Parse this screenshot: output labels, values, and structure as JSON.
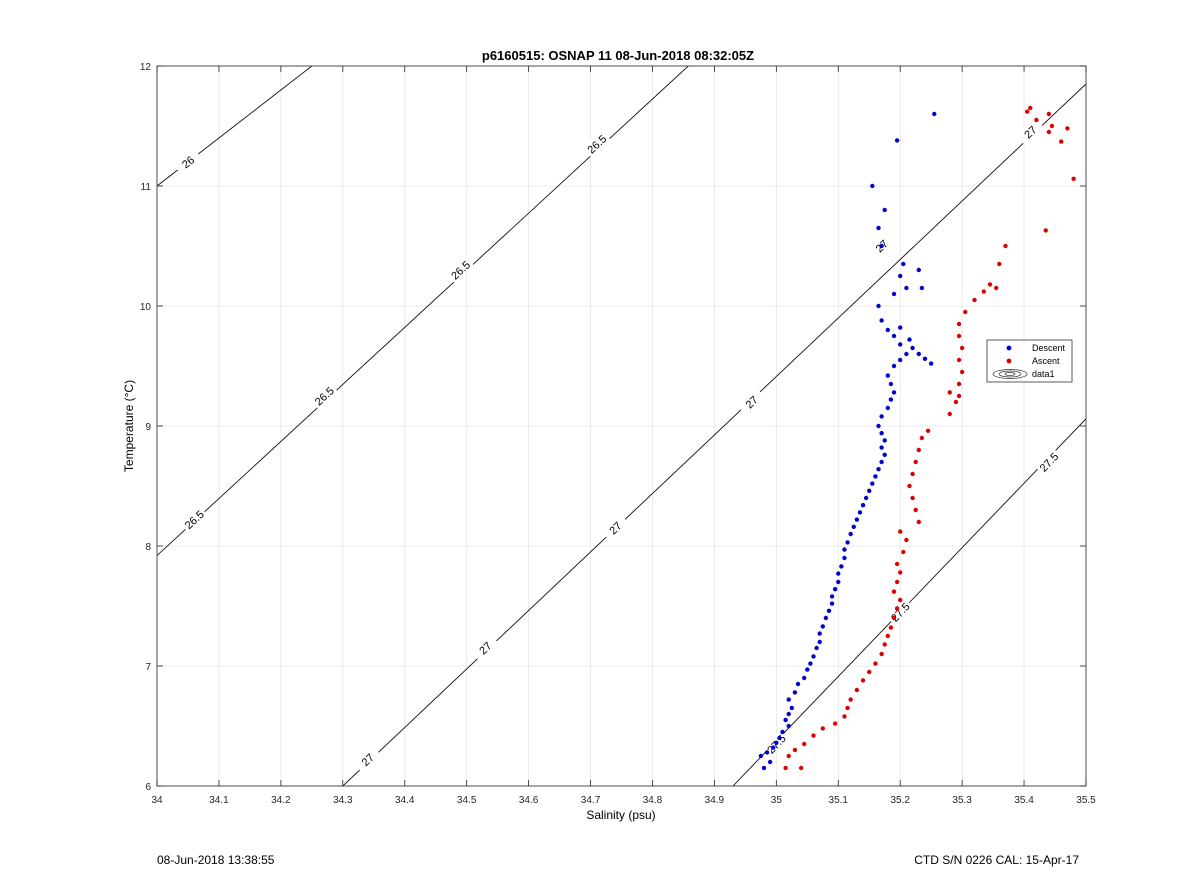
{
  "chart_data": {
    "type": "scatter",
    "title": "p6160515: OSNAP 11 08-Jun-2018 08:32:05Z",
    "xlabel": "Salinity (psu)",
    "ylabel": "Temperature (°C)",
    "xlim": [
      34,
      35.5
    ],
    "ylim": [
      6,
      12
    ],
    "xticks": [
      "34",
      "34.1",
      "34.2",
      "34.3",
      "34.4",
      "34.5",
      "34.6",
      "34.7",
      "34.8",
      "34.9",
      "35",
      "35.1",
      "35.2",
      "35.3",
      "35.4",
      "35.5"
    ],
    "yticks": [
      "6",
      "7",
      "8",
      "9",
      "10",
      "11",
      "12"
    ],
    "grid": true,
    "legend_position": "right",
    "legend": [
      "Descent",
      "Ascent",
      "data1"
    ],
    "series": [
      {
        "name": "Descent",
        "color": "#0000cc",
        "points": [
          [
            34.98,
            6.15
          ],
          [
            34.99,
            6.2
          ],
          [
            34.975,
            6.25
          ],
          [
            34.985,
            6.28
          ],
          [
            34.995,
            6.32
          ],
          [
            35.0,
            6.36
          ],
          [
            35.005,
            6.4
          ],
          [
            35.01,
            6.45
          ],
          [
            35.02,
            6.5
          ],
          [
            35.015,
            6.55
          ],
          [
            35.02,
            6.6
          ],
          [
            35.025,
            6.65
          ],
          [
            35.02,
            6.72
          ],
          [
            35.03,
            6.78
          ],
          [
            35.035,
            6.85
          ],
          [
            35.045,
            6.9
          ],
          [
            35.05,
            6.97
          ],
          [
            35.055,
            7.02
          ],
          [
            35.06,
            7.08
          ],
          [
            35.065,
            7.15
          ],
          [
            35.07,
            7.2
          ],
          [
            35.07,
            7.27
          ],
          [
            35.075,
            7.33
          ],
          [
            35.08,
            7.4
          ],
          [
            35.085,
            7.46
          ],
          [
            35.09,
            7.52
          ],
          [
            35.09,
            7.58
          ],
          [
            35.095,
            7.64
          ],
          [
            35.1,
            7.7
          ],
          [
            35.1,
            7.77
          ],
          [
            35.105,
            7.83
          ],
          [
            35.11,
            7.9
          ],
          [
            35.11,
            7.97
          ],
          [
            35.115,
            8.03
          ],
          [
            35.12,
            8.1
          ],
          [
            35.125,
            8.16
          ],
          [
            35.13,
            8.22
          ],
          [
            35.135,
            8.28
          ],
          [
            35.14,
            8.34
          ],
          [
            35.145,
            8.4
          ],
          [
            35.15,
            8.46
          ],
          [
            35.155,
            8.52
          ],
          [
            35.16,
            8.58
          ],
          [
            35.165,
            8.64
          ],
          [
            35.17,
            8.7
          ],
          [
            35.175,
            8.76
          ],
          [
            35.17,
            8.82
          ],
          [
            35.175,
            8.88
          ],
          [
            35.17,
            8.94
          ],
          [
            35.165,
            9.0
          ],
          [
            35.17,
            9.08
          ],
          [
            35.18,
            9.15
          ],
          [
            35.185,
            9.22
          ],
          [
            35.19,
            9.28
          ],
          [
            35.185,
            9.35
          ],
          [
            35.18,
            9.42
          ],
          [
            35.19,
            9.5
          ],
          [
            35.2,
            9.55
          ],
          [
            35.21,
            9.6
          ],
          [
            35.22,
            9.65
          ],
          [
            35.23,
            9.6
          ],
          [
            35.25,
            9.52
          ],
          [
            35.24,
            9.56
          ],
          [
            35.2,
            9.68
          ],
          [
            35.19,
            9.75
          ],
          [
            35.18,
            9.8
          ],
          [
            35.2,
            9.82
          ],
          [
            35.215,
            9.72
          ],
          [
            35.17,
            9.88
          ],
          [
            35.165,
            10.0
          ],
          [
            35.19,
            10.1
          ],
          [
            35.21,
            10.15
          ],
          [
            35.235,
            10.15
          ],
          [
            35.2,
            10.25
          ],
          [
            35.23,
            10.3
          ],
          [
            35.205,
            10.35
          ],
          [
            35.17,
            10.5
          ],
          [
            35.165,
            10.65
          ],
          [
            35.175,
            10.8
          ],
          [
            35.155,
            11.0
          ],
          [
            35.195,
            11.38
          ],
          [
            35.255,
            11.6
          ]
        ]
      },
      {
        "name": "Ascent",
        "color": "#dd0000",
        "points": [
          [
            35.04,
            6.15
          ],
          [
            35.015,
            6.15
          ],
          [
            35.02,
            6.25
          ],
          [
            35.03,
            6.3
          ],
          [
            35.045,
            6.35
          ],
          [
            35.06,
            6.42
          ],
          [
            35.075,
            6.48
          ],
          [
            35.095,
            6.52
          ],
          [
            35.11,
            6.58
          ],
          [
            35.115,
            6.65
          ],
          [
            35.12,
            6.72
          ],
          [
            35.13,
            6.8
          ],
          [
            35.14,
            6.88
          ],
          [
            35.15,
            6.95
          ],
          [
            35.16,
            7.02
          ],
          [
            35.17,
            7.1
          ],
          [
            35.175,
            7.18
          ],
          [
            35.18,
            7.25
          ],
          [
            35.185,
            7.32
          ],
          [
            35.19,
            7.4
          ],
          [
            35.195,
            7.48
          ],
          [
            35.2,
            7.55
          ],
          [
            35.19,
            7.62
          ],
          [
            35.195,
            7.7
          ],
          [
            35.2,
            7.78
          ],
          [
            35.195,
            7.85
          ],
          [
            35.205,
            7.95
          ],
          [
            35.21,
            8.05
          ],
          [
            35.2,
            8.12
          ],
          [
            35.23,
            8.2
          ],
          [
            35.225,
            8.3
          ],
          [
            35.22,
            8.4
          ],
          [
            35.215,
            8.5
          ],
          [
            35.22,
            8.6
          ],
          [
            35.225,
            8.7
          ],
          [
            35.23,
            8.8
          ],
          [
            35.235,
            8.9
          ],
          [
            35.245,
            8.96
          ],
          [
            35.28,
            9.1
          ],
          [
            35.29,
            9.2
          ],
          [
            35.295,
            9.25
          ],
          [
            35.28,
            9.28
          ],
          [
            35.295,
            9.35
          ],
          [
            35.3,
            9.45
          ],
          [
            35.295,
            9.55
          ],
          [
            35.3,
            9.65
          ],
          [
            35.295,
            9.75
          ],
          [
            35.295,
            9.85
          ],
          [
            35.305,
            9.95
          ],
          [
            35.32,
            10.05
          ],
          [
            35.335,
            10.12
          ],
          [
            35.345,
            10.18
          ],
          [
            35.355,
            10.15
          ],
          [
            35.36,
            10.35
          ],
          [
            35.37,
            10.5
          ],
          [
            35.435,
            10.63
          ],
          [
            35.48,
            11.06
          ],
          [
            35.46,
            11.37
          ],
          [
            35.44,
            11.45
          ],
          [
            35.445,
            11.5
          ],
          [
            35.47,
            11.48
          ],
          [
            35.42,
            11.55
          ],
          [
            35.44,
            11.6
          ],
          [
            35.405,
            11.62
          ],
          [
            35.41,
            11.65
          ]
        ]
      }
    ],
    "isopycnals": [
      {
        "label": "26",
        "points": [
          [
            34.0,
            11.0
          ],
          [
            34.3,
            12.2
          ]
        ],
        "label_at": [
          [
            34.05,
            11.2
          ]
        ]
      },
      {
        "label": "26.5",
        "points": [
          [
            34.0,
            7.92
          ],
          [
            34.9,
            12.2
          ]
        ],
        "label_at": [
          [
            34.06,
            8.22
          ],
          [
            34.27,
            9.25
          ],
          [
            34.49,
            10.3
          ],
          [
            34.71,
            11.35
          ]
        ]
      },
      {
        "label": "27",
        "points": [
          [
            34.3,
            6.0
          ],
          [
            35.5,
            11.85
          ]
        ],
        "label_at": [
          [
            34.34,
            6.22
          ],
          [
            34.53,
            7.15
          ],
          [
            34.74,
            8.15
          ],
          [
            34.96,
            9.2
          ],
          [
            35.17,
            10.5
          ],
          [
            35.41,
            11.45
          ]
        ]
      },
      {
        "label": "27.5",
        "points": [
          [
            34.93,
            6.0
          ],
          [
            35.5,
            9.06
          ]
        ],
        "label_at": [
          [
            35.0,
            6.35
          ],
          [
            35.2,
            7.45
          ],
          [
            35.44,
            8.7
          ]
        ]
      }
    ]
  },
  "footer": {
    "left": "08-Jun-2018 13:38:55",
    "right": "CTD S/N 0226  CAL: 15-Apr-17"
  }
}
